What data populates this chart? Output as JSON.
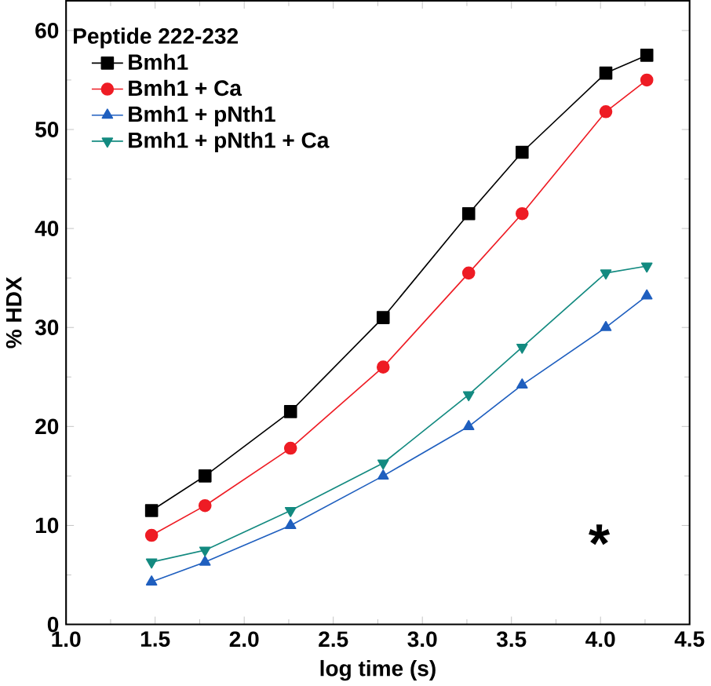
{
  "chart_data": {
    "type": "line",
    "xlabel": "log time (s)",
    "ylabel": "% HDX",
    "legend_title": "Peptide 222-232",
    "legend": "top left",
    "x": [
      1.48,
      1.78,
      2.26,
      2.78,
      3.26,
      3.56,
      4.03,
      4.26
    ],
    "series": [
      {
        "name": "Bmh1",
        "color": "#000000",
        "marker": "square",
        "values": [
          11.5,
          15,
          21.5,
          31,
          41.5,
          47.7,
          55.7,
          57.5
        ]
      },
      {
        "name": "Bmh1 + Ca",
        "color": "#ee1c24",
        "marker": "circle",
        "values": [
          9,
          12,
          17.8,
          26,
          35.5,
          41.5,
          51.8,
          55
        ]
      },
      {
        "name": "Bmh1 + pNth1",
        "color": "#1f5fbf",
        "marker": "triangle",
        "values": [
          4.3,
          6.3,
          10,
          15,
          20,
          24.2,
          30,
          33.2
        ]
      },
      {
        "name": "Bmh1 + pNth1 + Ca",
        "color": "#138a80",
        "marker": "triangle down",
        "values": [
          6.3,
          7.5,
          11.5,
          16.3,
          23.2,
          28,
          35.5,
          36.2
        ]
      }
    ],
    "xlim": [
      1.0,
      4.5
    ],
    "ylim": [
      0,
      63
    ],
    "xticks": [
      {
        "value": 1.0,
        "label": "1.0"
      },
      {
        "value": 1.5,
        "label": "1.5"
      },
      {
        "value": 2.0,
        "label": "2.0"
      },
      {
        "value": 2.5,
        "label": "2.5"
      },
      {
        "value": 3.0,
        "label": "3.0"
      },
      {
        "value": 3.5,
        "label": "3.5"
      },
      {
        "value": 4.0,
        "label": "4.0"
      },
      {
        "value": 4.5,
        "label": "4.5"
      }
    ],
    "yticks": [
      0,
      10,
      20,
      30,
      40,
      50,
      60
    ],
    "line_style": "solid",
    "annotations": [
      "*"
    ]
  }
}
